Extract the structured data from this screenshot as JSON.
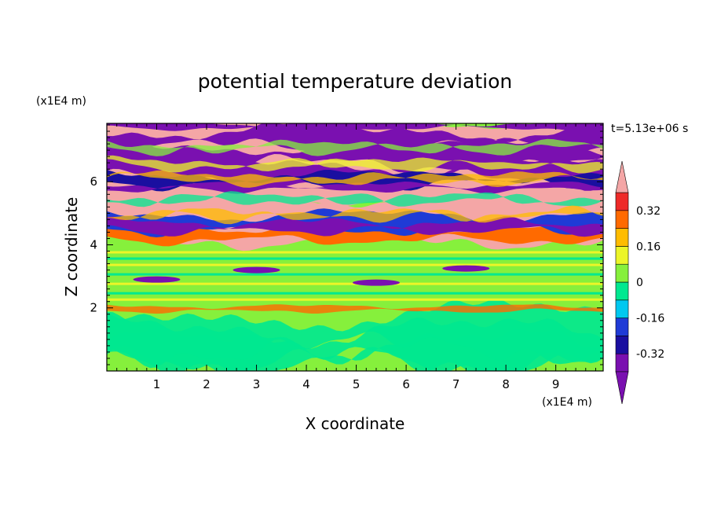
{
  "chart_data": {
    "type": "heatmap",
    "title": "potential temperature deviation",
    "xlabel": "X coordinate",
    "ylabel": "Z coordinate",
    "x_unit": "(x1E4 m)",
    "y_unit": "(x1E4 m)",
    "time_label": "t=5.13e+06 s",
    "xlim": [
      0,
      9.95
    ],
    "ylim": [
      0,
      7.85
    ],
    "x_ticks": [
      "1",
      "2",
      "3",
      "4",
      "5",
      "6",
      "7",
      "8",
      "9"
    ],
    "y_ticks": [
      "2",
      "4",
      "6"
    ],
    "colorbar": {
      "levels": [
        -0.4,
        -0.32,
        -0.24,
        -0.16,
        -0.08,
        0,
        0.08,
        0.16,
        0.24,
        0.32,
        0.4
      ],
      "tick_labels": [
        "0.32",
        "0.16",
        "0",
        "-0.16",
        "-0.32"
      ],
      "tick_values": [
        0.32,
        0.16,
        0,
        -0.16,
        -0.32
      ],
      "colors": [
        "#7a10b0",
        "#1a0fa0",
        "#1f3bd6",
        "#00c8f0",
        "#00e890",
        "#86f03c",
        "#ecf528",
        "#ffbc00",
        "#ff6a00",
        "#ee2a28",
        "#f4a6a6"
      ],
      "extend": "both"
    },
    "bands": [
      {
        "z": [
          7.55,
          7.85
        ],
        "value": "high"
      },
      {
        "z": [
          7.1,
          7.55
        ],
        "value": "low"
      },
      {
        "z": [
          6.6,
          7.1
        ],
        "value": "high"
      },
      {
        "z": [
          6.1,
          6.6
        ],
        "value": "low"
      },
      {
        "z": [
          5.4,
          6.1
        ],
        "value": "high"
      },
      {
        "z": [
          4.95,
          5.4
        ],
        "value": "high"
      },
      {
        "z": [
          4.5,
          4.95
        ],
        "value": "low"
      },
      {
        "z": [
          4.1,
          4.5
        ],
        "value": "mid-high"
      },
      {
        "z": [
          2.0,
          4.1
        ],
        "value": "near-zero"
      },
      {
        "z": [
          0.0,
          2.0
        ],
        "value": "slightly-negative"
      }
    ]
  }
}
